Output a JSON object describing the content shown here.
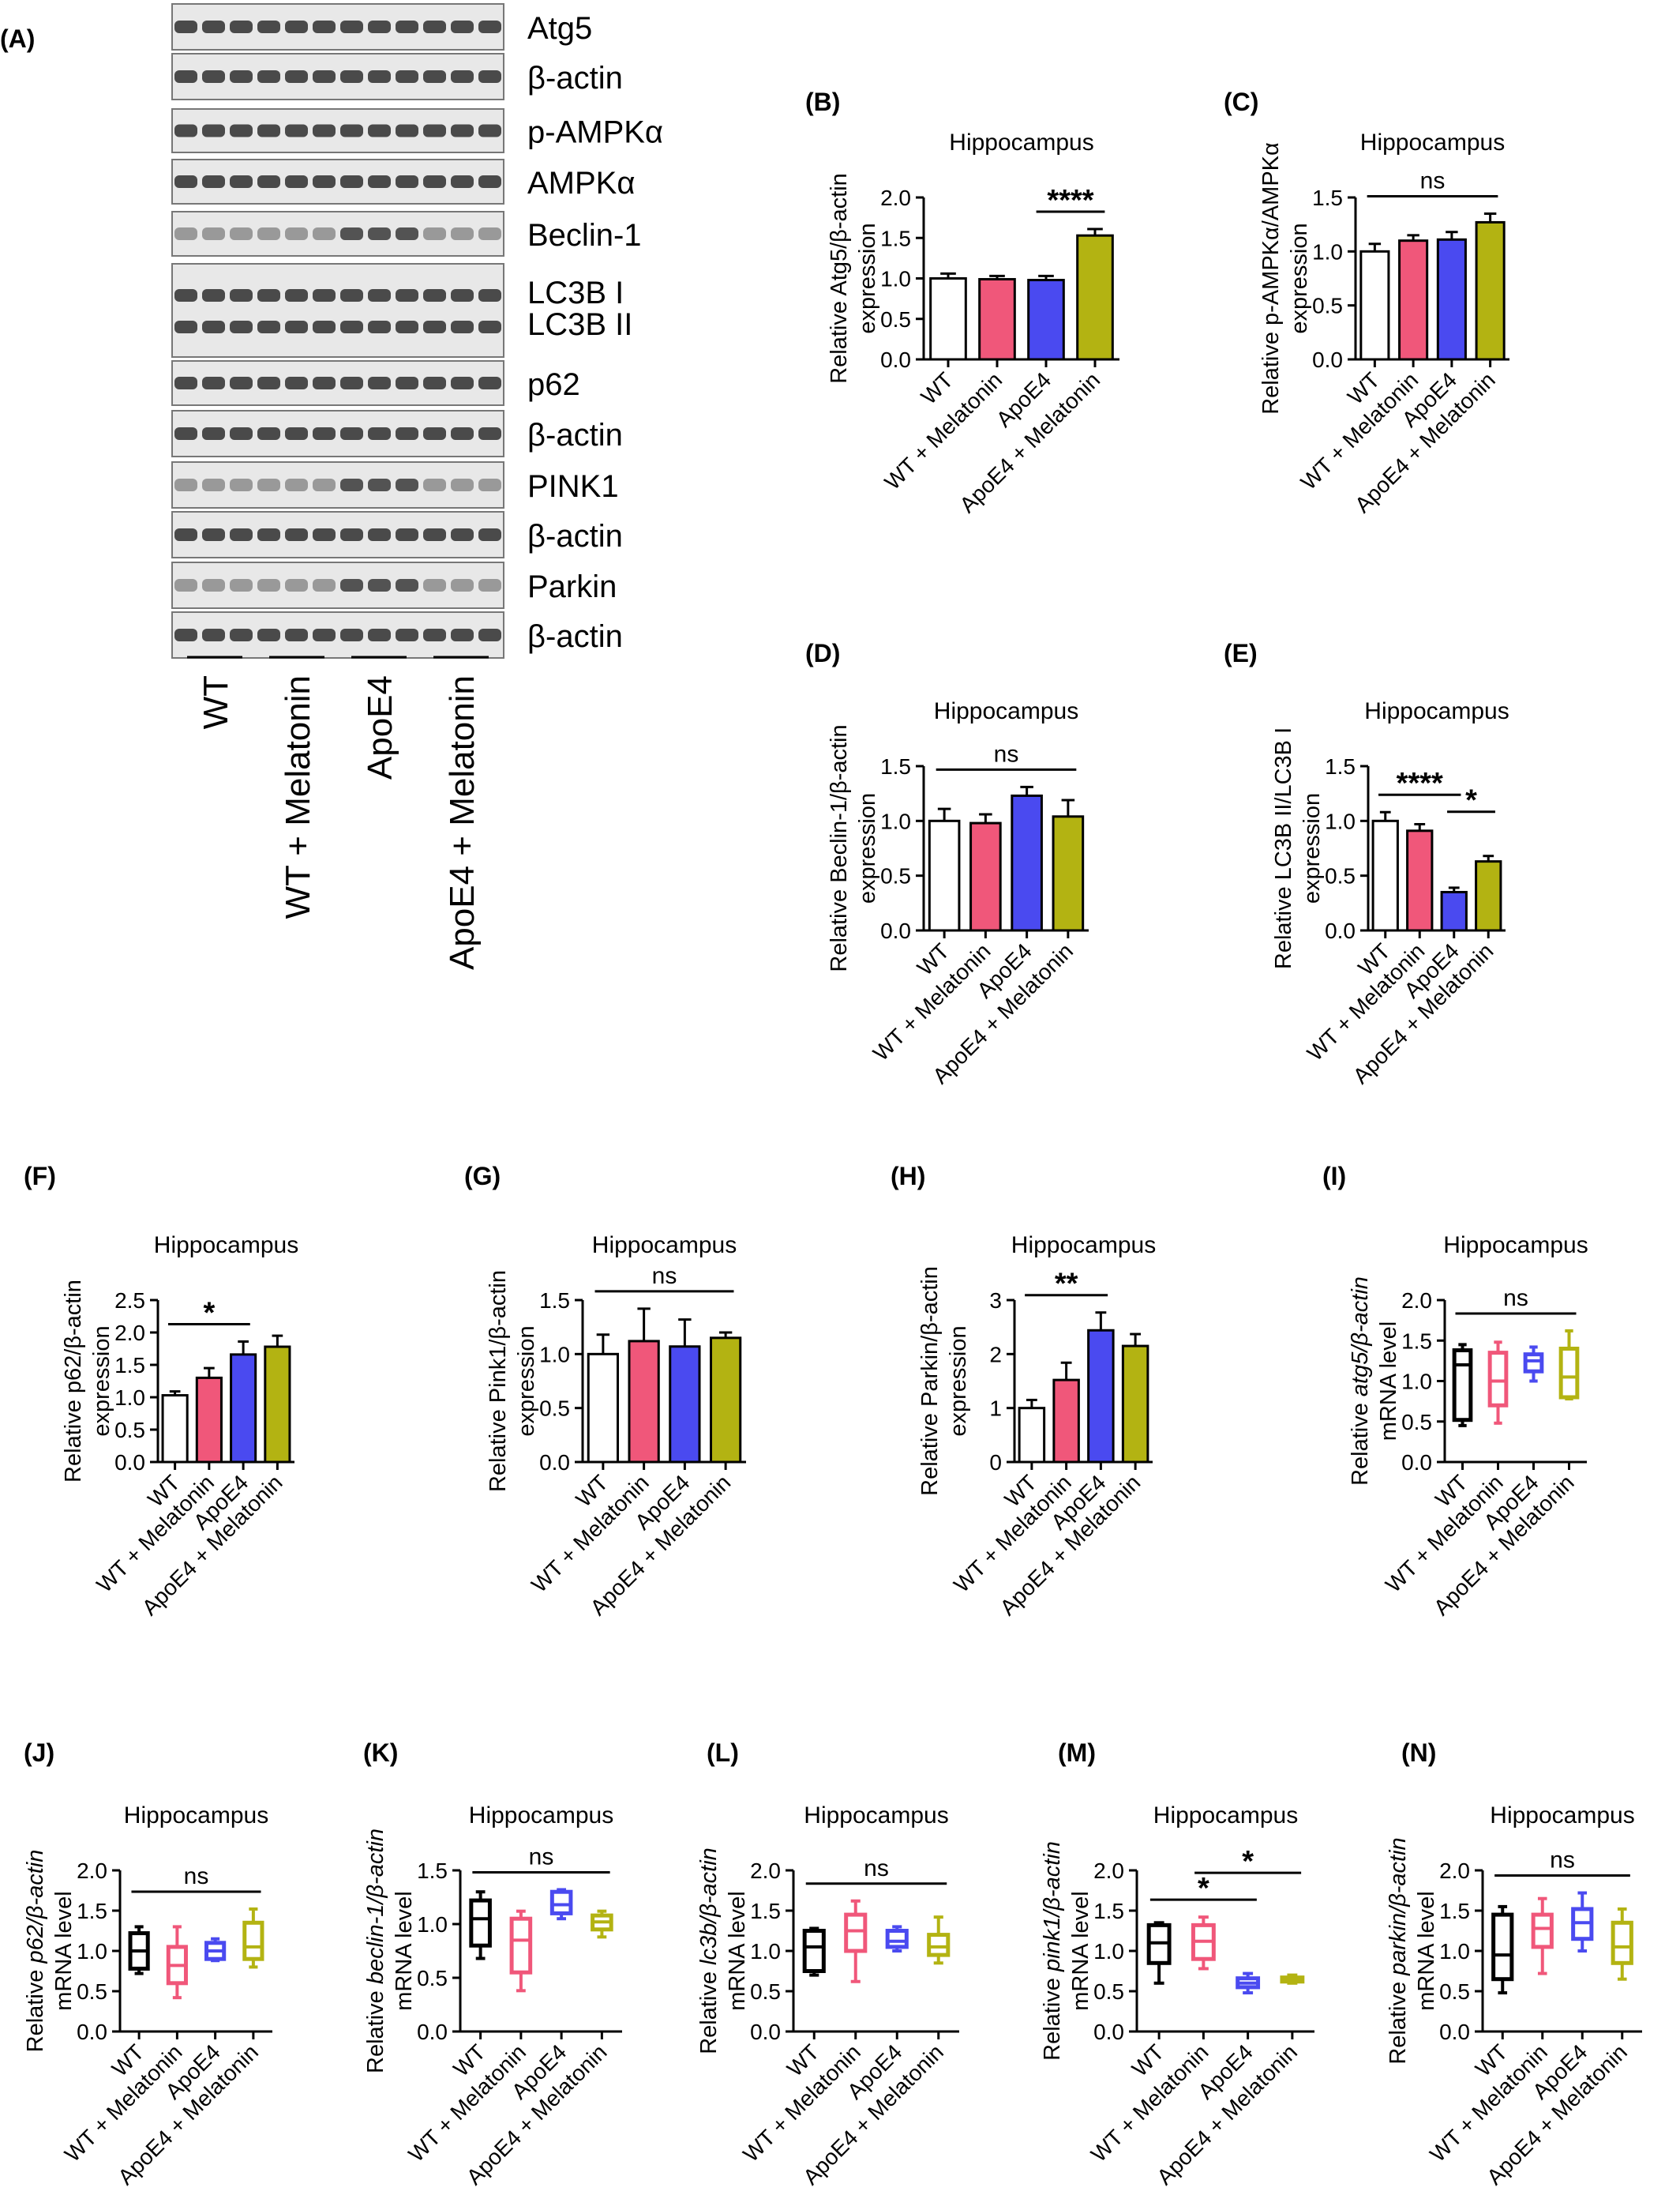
{
  "figure": {
    "blot": {
      "panel_label": "(A)",
      "bands": [
        "Atg5",
        "β-actin",
        "p-AMPKα",
        "AMPKα",
        "Beclin-1",
        "LC3B I",
        "LC3B II",
        "p62",
        "β-actin",
        "PINK1",
        "β-actin",
        "Parkin",
        "β-actin"
      ],
      "groups": [
        "WT",
        "WT + Melatonin",
        "ApoE4",
        "ApoE4 + Melatonin"
      ]
    }
  },
  "colors": {
    "WT": "#ffffff",
    "WT + Melatonin": "#f0577a",
    "ApoE4": "#4a4af0",
    "ApoE4 + Melatonin": "#b3b312",
    "box_WT": "#000000",
    "box_WT_Melatonin": "#f0577a",
    "box_ApoE4": "#4a4af0",
    "box_ApoE4_Melatonin": "#b3b312"
  },
  "chart_data": [
    {
      "panel": "(B)",
      "type": "bar",
      "title": "Hippocampus",
      "ylabel": [
        "Relative Atg5/β-actin",
        "expression"
      ],
      "categories": [
        "WT",
        "WT + Melatonin",
        "ApoE4",
        "ApoE4 + Melatonin"
      ],
      "values": [
        1.0,
        0.99,
        0.98,
        1.53
      ],
      "errors": [
        0.06,
        0.04,
        0.05,
        0.08
      ],
      "ylim": [
        0,
        2.0
      ],
      "yticks": [
        "0.0",
        "0.5",
        "1.0",
        "1.5",
        "2.0"
      ],
      "annotations": [
        {
          "text": "****",
          "from": 2,
          "to": 3
        }
      ]
    },
    {
      "panel": "(C)",
      "type": "bar",
      "title": "Hippocampus",
      "ylabel": [
        "Relative p-AMPKα/AMPKα",
        "expression"
      ],
      "categories": [
        "WT",
        "WT + Melatonin",
        "ApoE4",
        "ApoE4 + Melatonin"
      ],
      "values": [
        1.0,
        1.1,
        1.11,
        1.27
      ],
      "errors": [
        0.07,
        0.05,
        0.07,
        0.08
      ],
      "ylim": [
        0,
        1.5
      ],
      "yticks": [
        "0.0",
        "0.5",
        "1.0",
        "1.5"
      ],
      "annotations": [
        {
          "text": "ns",
          "from": 0,
          "to": 3
        }
      ]
    },
    {
      "panel": "(D)",
      "type": "bar",
      "title": "Hippocampus",
      "ylabel": [
        "Relative Beclin-1/β-actin",
        "expression"
      ],
      "categories": [
        "WT",
        "WT + Melatonin",
        "ApoE4",
        "ApoE4 + Melatonin"
      ],
      "values": [
        1.0,
        0.98,
        1.23,
        1.04
      ],
      "errors": [
        0.11,
        0.08,
        0.08,
        0.15
      ],
      "ylim": [
        0,
        1.5
      ],
      "yticks": [
        "0.0",
        "0.5",
        "1.0",
        "1.5"
      ],
      "annotations": [
        {
          "text": "ns",
          "from": 0,
          "to": 3
        }
      ]
    },
    {
      "panel": "(E)",
      "type": "bar",
      "title": "Hippocampus",
      "ylabel": [
        "Relative LC3B II/LC3B I",
        "expression"
      ],
      "categories": [
        "WT",
        "WT + Melatonin",
        "ApoE4",
        "ApoE4 + Melatonin"
      ],
      "values": [
        1.0,
        0.91,
        0.35,
        0.63
      ],
      "errors": [
        0.08,
        0.06,
        0.04,
        0.05
      ],
      "ylim": [
        0,
        1.5
      ],
      "yticks": [
        "0.0",
        "0.5",
        "1.0",
        "1.5"
      ],
      "annotations": [
        {
          "text": "****",
          "from": 0,
          "to": 2
        },
        {
          "text": "*",
          "from": 2,
          "to": 3
        }
      ]
    },
    {
      "panel": "(F)",
      "type": "bar",
      "title": "Hippocampus",
      "ylabel": [
        "Relative p62/β-actin",
        "expression"
      ],
      "categories": [
        "WT",
        "WT + Melatonin",
        "ApoE4",
        "ApoE4 + Melatonin"
      ],
      "values": [
        1.03,
        1.3,
        1.66,
        1.78
      ],
      "errors": [
        0.06,
        0.15,
        0.2,
        0.17
      ],
      "ylim": [
        0,
        2.5
      ],
      "yticks": [
        "0.0",
        "0.5",
        "1.0",
        "1.5",
        "2.0",
        "2.5"
      ],
      "annotations": [
        {
          "text": "*",
          "from": 0,
          "to": 2
        }
      ]
    },
    {
      "panel": "(G)",
      "type": "bar",
      "title": "Hippocampus",
      "ylabel": [
        "Relative Pink1/β-actin",
        "expression"
      ],
      "categories": [
        "WT",
        "WT + Melatonin",
        "ApoE4",
        "ApoE4 + Melatonin"
      ],
      "values": [
        1.0,
        1.12,
        1.07,
        1.15
      ],
      "errors": [
        0.18,
        0.3,
        0.25,
        0.05
      ],
      "ylim": [
        0,
        1.5
      ],
      "yticks": [
        "0.0",
        "0.5",
        "1.0",
        "1.5"
      ],
      "annotations": [
        {
          "text": "ns",
          "from": 0,
          "to": 3
        }
      ]
    },
    {
      "panel": "(H)",
      "type": "bar",
      "title": "Hippocampus",
      "ylabel": [
        "Relative Parkin/β-actin",
        "expression"
      ],
      "categories": [
        "WT",
        "WT + Melatonin",
        "ApoE4",
        "ApoE4 + Melatonin"
      ],
      "values": [
        1.0,
        1.52,
        2.44,
        2.15
      ],
      "errors": [
        0.15,
        0.32,
        0.33,
        0.22
      ],
      "ylim": [
        0,
        3
      ],
      "yticks": [
        "0",
        "1",
        "2",
        "3"
      ],
      "annotations": [
        {
          "text": "**",
          "from": 0,
          "to": 2
        }
      ]
    },
    {
      "panel": "(I)",
      "type": "box",
      "title": "Hippocampus",
      "ylabel": [
        "Relative atg5/β-actin",
        "mRNA level"
      ],
      "ylabel_italic": "atg5/β-actin",
      "categories": [
        "WT",
        "WT + Melatonin",
        "ApoE4",
        "ApoE4 + Melatonin"
      ],
      "boxes": [
        {
          "min": 0.45,
          "q1": 0.52,
          "median": 1.2,
          "q3": 1.38,
          "max": 1.45
        },
        {
          "min": 0.48,
          "q1": 0.7,
          "median": 1.0,
          "q3": 1.35,
          "max": 1.48
        },
        {
          "min": 1.0,
          "q1": 1.12,
          "median": 1.25,
          "q3": 1.33,
          "max": 1.42
        },
        {
          "min": 0.78,
          "q1": 0.8,
          "median": 1.05,
          "q3": 1.4,
          "max": 1.62
        }
      ],
      "ylim": [
        0,
        2.0
      ],
      "yticks": [
        "0.0",
        "0.5",
        "1.0",
        "1.5",
        "2.0"
      ],
      "annotations": [
        {
          "text": "ns",
          "from": 0,
          "to": 3
        }
      ]
    },
    {
      "panel": "(J)",
      "type": "box",
      "title": "Hippocampus",
      "ylabel": [
        "Relative p62/β-actin",
        "mRNA level"
      ],
      "ylabel_italic": "p62/β-actin",
      "categories": [
        "WT",
        "WT + Melatonin",
        "ApoE4",
        "ApoE4 + Melatonin"
      ],
      "boxes": [
        {
          "min": 0.72,
          "q1": 0.78,
          "median": 1.0,
          "q3": 1.22,
          "max": 1.3
        },
        {
          "min": 0.42,
          "q1": 0.6,
          "median": 0.82,
          "q3": 1.05,
          "max": 1.3
        },
        {
          "min": 0.88,
          "q1": 0.9,
          "median": 1.0,
          "q3": 1.1,
          "max": 1.15
        },
        {
          "min": 0.8,
          "q1": 0.9,
          "median": 1.05,
          "q3": 1.35,
          "max": 1.52
        }
      ],
      "ylim": [
        0,
        2.0
      ],
      "yticks": [
        "0.0",
        "0.5",
        "1.0",
        "1.5",
        "2.0"
      ],
      "annotations": [
        {
          "text": "ns",
          "from": 0,
          "to": 3
        }
      ]
    },
    {
      "panel": "(K)",
      "type": "box",
      "title": "Hippocampus",
      "ylabel": [
        "Relative beclin-1/β-actin",
        "mRNA level"
      ],
      "ylabel_italic": "beclin-1/β-actin",
      "categories": [
        "WT",
        "WT + Melatonin",
        "ApoE4",
        "ApoE4 + Melatonin"
      ],
      "boxes": [
        {
          "min": 0.68,
          "q1": 0.8,
          "median": 1.05,
          "q3": 1.22,
          "max": 1.3
        },
        {
          "min": 0.38,
          "q1": 0.55,
          "median": 0.85,
          "q3": 1.05,
          "max": 1.12
        },
        {
          "min": 1.05,
          "q1": 1.1,
          "median": 1.18,
          "q3": 1.3,
          "max": 1.32
        },
        {
          "min": 0.88,
          "q1": 0.95,
          "median": 1.02,
          "q3": 1.08,
          "max": 1.12
        }
      ],
      "ylim": [
        0,
        1.5
      ],
      "yticks": [
        "0.0",
        "0.5",
        "1.0",
        "1.5"
      ],
      "annotations": [
        {
          "text": "ns",
          "from": 0,
          "to": 3
        }
      ]
    },
    {
      "panel": "(L)",
      "type": "box",
      "title": "Hippocampus",
      "ylabel": [
        "Relative lc3b/β-actin",
        "mRNA level"
      ],
      "ylabel_italic": "lc3b/β-actin",
      "categories": [
        "WT",
        "WT + Melatonin",
        "ApoE4",
        "ApoE4 + Melatonin"
      ],
      "boxes": [
        {
          "min": 0.7,
          "q1": 0.75,
          "median": 1.05,
          "q3": 1.25,
          "max": 1.28
        },
        {
          "min": 0.62,
          "q1": 1.0,
          "median": 1.25,
          "q3": 1.45,
          "max": 1.62
        },
        {
          "min": 1.0,
          "q1": 1.05,
          "median": 1.12,
          "q3": 1.25,
          "max": 1.3
        },
        {
          "min": 0.85,
          "q1": 0.95,
          "median": 1.05,
          "q3": 1.2,
          "max": 1.42
        }
      ],
      "ylim": [
        0,
        2.0
      ],
      "yticks": [
        "0.0",
        "0.5",
        "1.0",
        "1.5",
        "2.0"
      ],
      "annotations": [
        {
          "text": "ns",
          "from": 0,
          "to": 3
        }
      ]
    },
    {
      "panel": "(M)",
      "type": "box",
      "title": "Hippocampus",
      "ylabel": [
        "Relative pink1/β-actin",
        "mRNA level"
      ],
      "ylabel_italic": "pink1/β-actin",
      "categories": [
        "WT",
        "WT + Melatonin",
        "ApoE4",
        "ApoE4 + Melatonin"
      ],
      "boxes": [
        {
          "min": 0.6,
          "q1": 0.85,
          "median": 1.1,
          "q3": 1.32,
          "max": 1.35
        },
        {
          "min": 0.78,
          "q1": 0.9,
          "median": 1.12,
          "q3": 1.32,
          "max": 1.42
        },
        {
          "min": 0.48,
          "q1": 0.55,
          "median": 0.6,
          "q3": 0.66,
          "max": 0.72
        },
        {
          "min": 0.6,
          "q1": 0.62,
          "median": 0.64,
          "q3": 0.67,
          "max": 0.7
        }
      ],
      "ylim": [
        0,
        2.0
      ],
      "yticks": [
        "0.0",
        "0.5",
        "1.0",
        "1.5",
        "2.0"
      ],
      "annotations": [
        {
          "text": "*",
          "from": 0,
          "to": 2
        },
        {
          "text": "*",
          "from": 1,
          "to": 3
        }
      ]
    },
    {
      "panel": "(N)",
      "type": "box",
      "title": "Hippocampus",
      "ylabel": [
        "Relative parkin/β-actin",
        "mRNA level"
      ],
      "ylabel_italic": "parkin/β-actin",
      "categories": [
        "WT",
        "WT + Melatonin",
        "ApoE4",
        "ApoE4 + Melatonin"
      ],
      "boxes": [
        {
          "min": 0.48,
          "q1": 0.65,
          "median": 0.95,
          "q3": 1.45,
          "max": 1.55
        },
        {
          "min": 0.72,
          "q1": 1.05,
          "median": 1.28,
          "q3": 1.45,
          "max": 1.65
        },
        {
          "min": 1.0,
          "q1": 1.15,
          "median": 1.35,
          "q3": 1.52,
          "max": 1.72
        },
        {
          "min": 0.65,
          "q1": 0.85,
          "median": 1.05,
          "q3": 1.35,
          "max": 1.52
        }
      ],
      "ylim": [
        0,
        2.0
      ],
      "yticks": [
        "0.0",
        "0.5",
        "1.0",
        "1.5",
        "2.0"
      ],
      "annotations": [
        {
          "text": "ns",
          "from": 0,
          "to": 3
        }
      ]
    }
  ]
}
